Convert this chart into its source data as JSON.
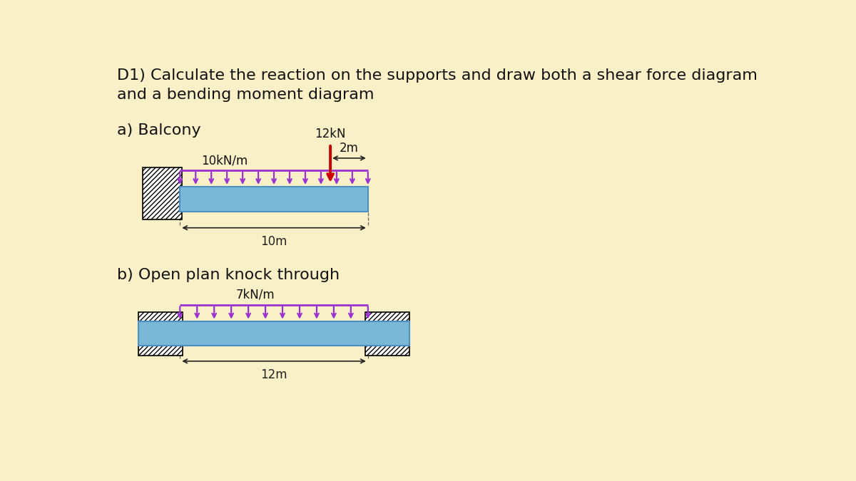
{
  "bg_color": "#FAF0C8",
  "title_line1": "D1) Calculate the reaction on the supports and draw both a shear force diagram",
  "title_line2": "and a bending moment diagram",
  "title_fontsize": 16,
  "label_a": "a) Balcony",
  "label_b": "b) Open plan knock through",
  "beam_color": "#7BB8D8",
  "beam_edge_color": "#4A90C0",
  "hatch_facecolor": "white",
  "udl_color": "#9B30D0",
  "point_load_color": "#CC0000",
  "dim_color": "#222222",
  "text_color": "#111111",
  "label_fontsize": 16,
  "annot_fontsize": 12
}
